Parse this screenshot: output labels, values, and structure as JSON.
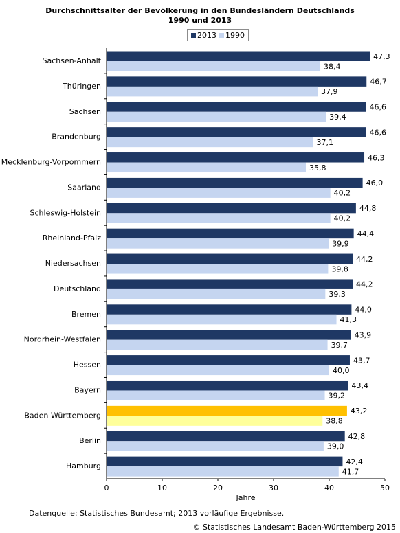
{
  "chart_data": {
    "type": "bar",
    "orientation": "horizontal",
    "title_lines": [
      "Durchschnittsalter der Bevölkerung in den Bundesländern Deutschlands",
      "1990 und 2013"
    ],
    "xlabel": "Jahre",
    "ylabel": "",
    "xlim": [
      0,
      50
    ],
    "xticks": [
      "0",
      "10",
      "20",
      "30",
      "40",
      "50"
    ],
    "grid": false,
    "legend_position": "top-center",
    "categories": [
      "Sachsen-Anhalt",
      "Thüringen",
      "Sachsen",
      "Brandenburg",
      "Mecklenburg-Vorpommern",
      "Saarland",
      "Schleswig-Holstein",
      "Rheinland-Pfalz",
      "Niedersachsen",
      "Deutschland",
      "Bremen",
      "Nordrhein-Westfalen",
      "Hessen",
      "Bayern",
      "Baden-Württemberg",
      "Berlin",
      "Hamburg"
    ],
    "series": [
      {
        "name": "2013",
        "color": "#1f3864",
        "values": [
          47.3,
          46.7,
          46.6,
          46.6,
          46.3,
          46.0,
          44.8,
          44.4,
          44.2,
          44.2,
          44.0,
          43.9,
          43.7,
          43.4,
          43.2,
          42.8,
          42.4
        ],
        "labels": [
          "47,3",
          "46,7",
          "46,6",
          "46,6",
          "46,3",
          "46,0",
          "44,8",
          "44,4",
          "44,2",
          "44,2",
          "44,0",
          "43,9",
          "43,7",
          "43,4",
          "43,2",
          "42,8",
          "42,4"
        ]
      },
      {
        "name": "1990",
        "color": "#c5d5f0",
        "values": [
          38.4,
          37.9,
          39.4,
          37.1,
          35.8,
          40.2,
          40.2,
          39.9,
          39.8,
          39.3,
          41.3,
          39.7,
          40.0,
          39.2,
          38.8,
          39.0,
          41.7
        ],
        "labels": [
          "38,4",
          "37,9",
          "39,4",
          "37,1",
          "35,8",
          "40,2",
          "40,2",
          "39,9",
          "39,8",
          "39,3",
          "41,3",
          "39,7",
          "40,0",
          "39,2",
          "38,8",
          "39,0",
          "41,7"
        ]
      }
    ],
    "highlight": {
      "category": "Baden-Württemberg",
      "colors": {
        "2013": "#ffc000",
        "1990": "#ffff99"
      }
    }
  },
  "footer": {
    "source": "Datenquelle: Statistisches Bundesamt; 2013 vorläufige Ergebnisse.",
    "copyright": "© Statistisches Landesamt Baden-Württemberg 2015"
  }
}
